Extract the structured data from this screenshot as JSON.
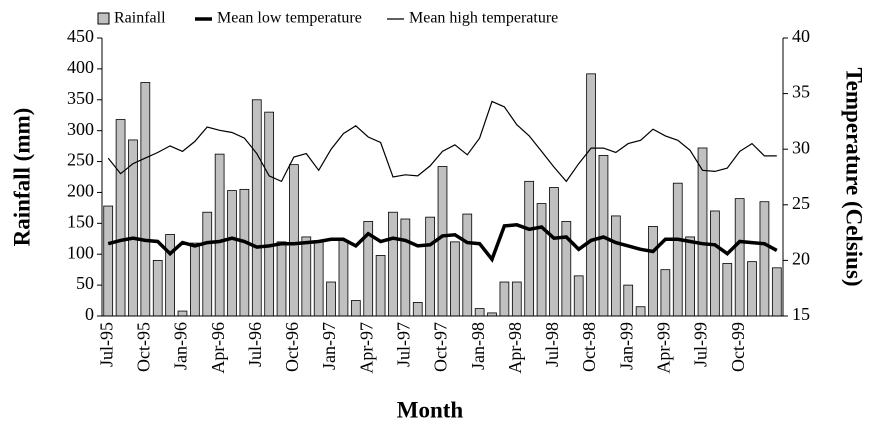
{
  "chart_data": {
    "type": "bar_line",
    "x_label": "Month",
    "y_label": "Rainfall (mm)",
    "y2_label": "Temperature (Celsius)",
    "categories": [
      "Jul-95",
      null,
      null,
      "Oct-95",
      null,
      null,
      "Jan-96",
      null,
      null,
      "Apr-96",
      null,
      null,
      "Jul-96",
      null,
      null,
      "Oct-96",
      null,
      null,
      "Jan-97",
      null,
      null,
      "Apr-97",
      null,
      null,
      "Jul-97",
      null,
      null,
      "Oct-97",
      null,
      null,
      "Jan-98",
      null,
      null,
      "Apr-98",
      null,
      null,
      "Jul-98",
      null,
      null,
      "Oct-98",
      null,
      null,
      "Jan-99",
      null,
      null,
      "Apr-99",
      null,
      null,
      "Jul-99",
      null,
      null,
      "Oct-99",
      null,
      null,
      null
    ],
    "series": [
      {
        "name": "Rainfall",
        "type": "bar",
        "color": "#c0c0c0",
        "values": [
          178,
          318,
          285,
          378,
          90,
          132,
          8,
          118,
          168,
          262,
          203,
          205,
          350,
          330,
          120,
          245,
          128,
          122,
          55,
          122,
          25,
          153,
          98,
          168,
          157,
          22,
          160,
          242,
          120,
          165,
          12,
          5,
          55,
          55,
          218,
          182,
          208,
          153,
          65,
          392,
          260,
          162,
          50,
          15,
          145,
          75,
          215,
          128,
          272,
          170,
          85,
          190,
          88,
          185,
          78
        ]
      },
      {
        "name": "Mean low temperature",
        "type": "line",
        "axis": "y2",
        "color": "#000000",
        "values": [
          21.5,
          21.8,
          22,
          21.8,
          21.7,
          20.6,
          21.6,
          21.3,
          21.6,
          21.7,
          22,
          21.7,
          21.2,
          21.3,
          21.5,
          21.5,
          21.6,
          21.7,
          21.9,
          21.9,
          21.3,
          22.4,
          21.7,
          22,
          21.8,
          21.3,
          21.4,
          22.2,
          22.3,
          21.6,
          21.5,
          20.1,
          23.1,
          23.2,
          22.8,
          23,
          22,
          22.1,
          21,
          21.8,
          22.1,
          21.6,
          21.3,
          21,
          20.8,
          21.9,
          21.9,
          21.7,
          21.5,
          21.4,
          20.6,
          21.7,
          21.6,
          21.5,
          20.9
        ]
      },
      {
        "name": "Mean high temperature",
        "type": "line",
        "axis": "y2",
        "color": "#000000",
        "values": [
          29.2,
          27.8,
          28.7,
          29.2,
          29.7,
          30.3,
          29.8,
          30.7,
          32,
          31.7,
          31.5,
          31,
          29.6,
          27.6,
          27.1,
          29.3,
          29.6,
          28.1,
          30,
          31.4,
          32.1,
          31.1,
          30.6,
          27.5,
          27.7,
          27.6,
          28.5,
          29.8,
          30.4,
          29.5,
          31,
          34.3,
          33.8,
          32.2,
          31.2,
          29.8,
          28.4,
          27.1,
          28.7,
          30.1,
          30.1,
          29.7,
          30.5,
          30.8,
          31.8,
          31.2,
          30.8,
          29.9,
          28.1,
          28,
          28.3,
          29.8,
          30.5,
          29.4,
          29.4
        ]
      }
    ],
    "ylim": [
      0,
      450
    ],
    "yticks": [
      0,
      50,
      100,
      150,
      200,
      250,
      300,
      350,
      400,
      450
    ],
    "y2lim": [
      15,
      40
    ],
    "y2ticks": [
      15,
      20,
      25,
      30,
      35,
      40
    ]
  }
}
